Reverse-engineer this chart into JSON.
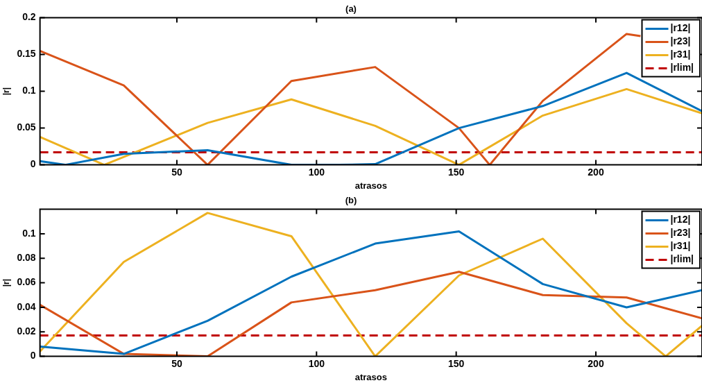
{
  "chart_data": [
    {
      "type": "line",
      "title": "(a)",
      "xlabel": "atrasos",
      "ylabel": "|r|",
      "xlim": [
        1,
        238
      ],
      "xticks": [
        50,
        100,
        150,
        200
      ],
      "ylim": [
        0,
        0.2
      ],
      "yticks": [
        0,
        0.05,
        0.1,
        0.15,
        0.2
      ],
      "legend": "top right",
      "marker": "none",
      "series": [
        {
          "name": "|r12|",
          "color": "#0072bd",
          "x": [
            1,
            10,
            31,
            61,
            91,
            108,
            121,
            151,
            181,
            211,
            238
          ],
          "values": [
            0.005,
            0,
            0.015,
            0.02,
            0,
            0,
            0.001,
            0.05,
            0.08,
            0.125,
            0.073
          ]
        },
        {
          "name": "|r23|",
          "color": "#d95319",
          "x": [
            1,
            31,
            61,
            91,
            121,
            151,
            162,
            181,
            211,
            216
          ],
          "values": [
            0.155,
            0.108,
            0,
            0.114,
            0.133,
            0.05,
            0,
            0.087,
            0.178,
            0.175
          ]
        },
        {
          "name": "|r31|",
          "color": "#edb120",
          "x": [
            1,
            24,
            61,
            91,
            121,
            151,
            181,
            211,
            238
          ],
          "values": [
            0.038,
            0,
            0.057,
            0.089,
            0.053,
            0,
            0.067,
            0.103,
            0.07
          ]
        },
        {
          "name": "|rlim|",
          "color": "#c00000",
          "line_style": "dashed",
          "x": [
            1,
            238
          ],
          "values": [
            0.017,
            0.017
          ]
        }
      ]
    },
    {
      "type": "line",
      "title": "(b)",
      "xlabel": "atrasos",
      "ylabel": "|r|",
      "xlim": [
        1,
        238
      ],
      "xticks": [
        50,
        100,
        150,
        200
      ],
      "ylim": [
        0,
        0.12
      ],
      "yticks": [
        0,
        0.02,
        0.04,
        0.06,
        0.08,
        0.1
      ],
      "legend": "top right",
      "marker": "none",
      "series": [
        {
          "name": "|r12|",
          "color": "#0072bd",
          "x": [
            1,
            31,
            61,
            91,
            121,
            151,
            181,
            211,
            238
          ],
          "values": [
            0.008,
            0.002,
            0.029,
            0.065,
            0.092,
            0.102,
            0.059,
            0.04,
            0.054
          ]
        },
        {
          "name": "|r23|",
          "color": "#d95319",
          "x": [
            1,
            31,
            61,
            91,
            121,
            151,
            181,
            211,
            238
          ],
          "values": [
            0.042,
            0.002,
            0,
            0.044,
            0.054,
            0.069,
            0.05,
            0.048,
            0.031
          ]
        },
        {
          "name": "|r31|",
          "color": "#edb120",
          "x": [
            1,
            31,
            61,
            91,
            121,
            151,
            181,
            211,
            225,
            238
          ],
          "values": [
            0.004,
            0.077,
            0.117,
            0.098,
            0,
            0.066,
            0.096,
            0.027,
            0,
            0.025
          ]
        },
        {
          "name": "|rlim|",
          "color": "#c00000",
          "line_style": "dashed",
          "x": [
            1,
            238
          ],
          "values": [
            0.017,
            0.017
          ]
        }
      ]
    }
  ]
}
